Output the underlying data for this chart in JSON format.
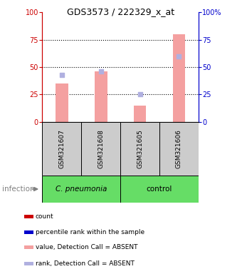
{
  "title": "GDS3573 / 222329_x_at",
  "samples": [
    "GSM321607",
    "GSM321608",
    "GSM321605",
    "GSM321606"
  ],
  "bar_values": [
    35,
    46,
    15,
    80
  ],
  "rank_values": [
    43,
    46,
    25,
    60
  ],
  "bar_color": "#f4a0a0",
  "rank_color": "#b0b0e0",
  "ylim": [
    0,
    100
  ],
  "yticks": [
    0,
    25,
    50,
    75,
    100
  ],
  "left_axis_color": "#cc0000",
  "right_axis_color": "#0000cc",
  "sample_box_color": "#cccccc",
  "group_pneumonia_color": "#66dd66",
  "group_control_color": "#66dd66",
  "legend_colors": [
    "#cc0000",
    "#0000cc",
    "#f4a0a0",
    "#b0b0e0"
  ],
  "legend_labels": [
    "count",
    "percentile rank within the sample",
    "value, Detection Call = ABSENT",
    "rank, Detection Call = ABSENT"
  ]
}
